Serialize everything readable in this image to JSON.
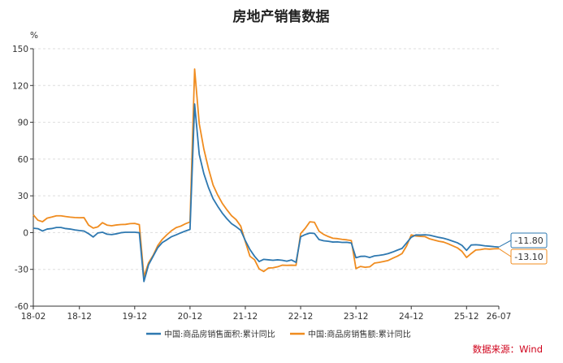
{
  "chart_data": {
    "type": "line",
    "title": "房地产销售数据",
    "ylabel": "%",
    "ylim": [
      -60,
      150
    ],
    "yticks": [
      -60,
      -30,
      0,
      30,
      60,
      90,
      120,
      150
    ],
    "x_tick_labels": [
      "18-02",
      "18-12",
      "19-12",
      "20-12",
      "21-12",
      "22-12",
      "23-12",
      "24-12",
      "25-12",
      "26-07"
    ],
    "x_tick_index": [
      0,
      10,
      22,
      34,
      46,
      58,
      70,
      82,
      94,
      101
    ],
    "grid": true,
    "legend_position": "bottom",
    "source": "数据来源：Wind",
    "colors": {
      "area": "#2e78b0",
      "sales": "#f08c1f"
    },
    "series": [
      {
        "name": "中国:商品房销售面积:累计同比",
        "color": "#2e78b0",
        "end_label": "-11.80",
        "values": [
          3.6,
          3.2,
          1.3,
          2.9,
          3.3,
          4.2,
          4.2,
          3.3,
          2.9,
          2.2,
          1.7,
          1.3,
          -0.9,
          -3.6,
          -0.3,
          0.3,
          -1.3,
          -1.6,
          -1.0,
          -0.1,
          0.3,
          0.3,
          0.3,
          -0.1,
          -39.9,
          -26.3,
          -19.3,
          -12.3,
          -8.1,
          -5.8,
          -3.3,
          -1.8,
          -0.2,
          1.3,
          2.6,
          104.9,
          63.8,
          48.1,
          36.8,
          27.7,
          21.5,
          15.9,
          11.3,
          7.3,
          4.8,
          1.9,
          -6.5,
          -13.8,
          -19.3,
          -23.6,
          -21.8,
          -22.2,
          -22.6,
          -22.2,
          -22.6,
          -23.3,
          -22.3,
          -24.3,
          -3.4,
          -1.6,
          -0.4,
          -0.7,
          -5.7,
          -6.7,
          -7.1,
          -7.7,
          -7.6,
          -8.0,
          -7.9,
          -8.5,
          -20.5,
          -19.4,
          -19.3,
          -20.3,
          -19.0,
          -18.6,
          -18.0,
          -17.1,
          -15.8,
          -14.3,
          -12.9,
          -8.4,
          -3.8,
          -1.9,
          -2.0,
          -1.8,
          -2.1,
          -3.0,
          -3.9,
          -4.6,
          -5.7,
          -7.0,
          -8.3,
          -10.4,
          -14.5,
          -10.1,
          -9.9,
          -10.2,
          -10.8,
          -11.1,
          -11.5,
          -11.8
        ]
      },
      {
        "name": "中国:商品房销售额:累计同比",
        "color": "#f08c1f",
        "end_label": "-13.10",
        "values": [
          14.5,
          10.1,
          8.9,
          11.8,
          12.7,
          13.7,
          13.7,
          13.1,
          12.6,
          12.3,
          12.1,
          12.2,
          6.1,
          3.7,
          4.7,
          8.1,
          6.1,
          5.6,
          6.2,
          6.6,
          6.7,
          7.3,
          7.5,
          6.5,
          -35.9,
          -24.7,
          -18.6,
          -10.6,
          -5.4,
          -1.7,
          1.6,
          4.1,
          5.3,
          7.2,
          8.7,
          133.4,
          88.9,
          68.2,
          52.4,
          38.9,
          30.7,
          23.9,
          18.6,
          13.8,
          10.6,
          5.3,
          -7.3,
          -19.3,
          -22.1,
          -29.6,
          -31.7,
          -28.9,
          -28.7,
          -27.9,
          -26.6,
          -26.7,
          -26.6,
          -26.7,
          -0.8,
          3.5,
          8.8,
          8.4,
          1.1,
          -1.5,
          -3.2,
          -4.6,
          -4.9,
          -5.5,
          -5.9,
          -6.5,
          -29.3,
          -27.6,
          -28.3,
          -27.9,
          -24.9,
          -24.3,
          -23.6,
          -22.7,
          -20.9,
          -19.2,
          -17.1,
          -10.8,
          -1.9,
          -2.8,
          -3.1,
          -3.3,
          -5.1,
          -6.1,
          -7.1,
          -7.7,
          -9.1,
          -10.8,
          -12.4,
          -15.3,
          -20.3,
          -17.1,
          -14.2,
          -13.9,
          -13.2,
          -13.5,
          -13.2,
          -13.1
        ]
      }
    ]
  }
}
